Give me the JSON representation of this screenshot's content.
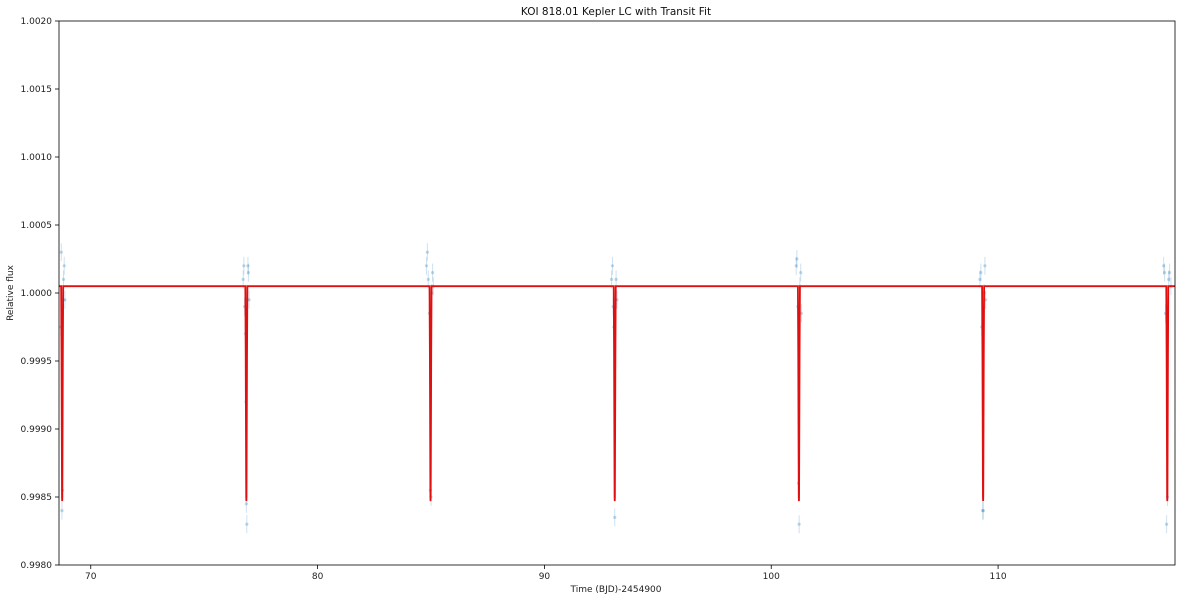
{
  "chart_data": {
    "type": "line",
    "title": "KOI 818.01 Kepler LC with Transit Fit",
    "xlabel": "Time (BJD)-2454900",
    "ylabel": "Relative flux",
    "xlim": [
      68.6,
      117.8
    ],
    "ylim": [
      0.998,
      1.002
    ],
    "xticks": [
      70,
      80,
      90,
      100,
      110
    ],
    "yticks": [
      0.998,
      0.9985,
      0.999,
      0.9995,
      1.0,
      1.0005,
      1.001,
      1.0015,
      1.002
    ],
    "ytick_labels": [
      "0.9980",
      "0.9985",
      "0.9990",
      "0.9995",
      "1.0000",
      "1.0005",
      "1.0010",
      "1.0015",
      "1.0020"
    ],
    "grid": false,
    "colors": {
      "model": "#e01010",
      "data": "#1f77b4",
      "axes": "#000000"
    },
    "series": [
      {
        "kind": "model",
        "baseline": 1.00005,
        "transit_depth_min": 0.99847,
        "transit_centers": [
          68.74,
          76.86,
          84.98,
          93.1,
          101.22,
          109.34,
          117.46
        ],
        "transit_half_width": 0.045
      },
      {
        "kind": "data",
        "points": [
          [
            68.68,
            0.99975
          ],
          [
            68.7,
            1.0003
          ],
          [
            68.73,
            0.9984
          ],
          [
            68.75,
            0.99855
          ],
          [
            68.78,
            0.99995
          ],
          [
            68.8,
            1.0001
          ],
          [
            68.83,
            1.0002
          ],
          [
            68.86,
            0.99995
          ],
          [
            76.72,
            1.0001
          ],
          [
            76.75,
            1.0002
          ],
          [
            76.78,
            0.9999
          ],
          [
            76.82,
            0.9997
          ],
          [
            76.84,
            0.9992
          ],
          [
            76.86,
            0.99845
          ],
          [
            76.88,
            0.9983
          ],
          [
            76.9,
            0.99995
          ],
          [
            76.93,
            1.0002
          ],
          [
            76.95,
            1.00015
          ],
          [
            76.98,
            0.99995
          ],
          [
            84.8,
            1.0002
          ],
          [
            84.84,
            1.0003
          ],
          [
            84.88,
            1.0001
          ],
          [
            84.93,
            0.99985
          ],
          [
            84.97,
            0.99855
          ],
          [
            85.0,
            0.9985
          ],
          [
            85.03,
            1.0
          ],
          [
            85.07,
            1.00015
          ],
          [
            85.1,
            1.00005
          ],
          [
            92.96,
            1.0001
          ],
          [
            93.0,
            1.0002
          ],
          [
            93.03,
            0.9999
          ],
          [
            93.06,
            0.99975
          ],
          [
            93.1,
            0.99835
          ],
          [
            93.13,
            0.99995
          ],
          [
            93.16,
            1.0001
          ],
          [
            93.2,
            0.99995
          ],
          [
            101.1,
            1.0002
          ],
          [
            101.13,
            1.00025
          ],
          [
            101.17,
            0.9999
          ],
          [
            101.2,
            0.9986
          ],
          [
            101.23,
            0.9983
          ],
          [
            101.26,
            1.00005
          ],
          [
            101.3,
            1.00015
          ],
          [
            101.33,
            0.99985
          ],
          [
            109.2,
            1.0001
          ],
          [
            109.24,
            1.00015
          ],
          [
            109.28,
            0.99975
          ],
          [
            109.32,
            0.9984
          ],
          [
            109.35,
            0.9984
          ],
          [
            109.38,
            1.0
          ],
          [
            109.42,
            1.0002
          ],
          [
            109.45,
            0.99995
          ],
          [
            117.3,
            1.0002
          ],
          [
            117.34,
            1.00015
          ],
          [
            117.38,
            0.99985
          ],
          [
            117.43,
            0.9983
          ],
          [
            117.47,
            0.9985
          ],
          [
            117.52,
            1.0001
          ],
          [
            117.56,
            1.00015
          ],
          [
            117.62,
            1.00005
          ]
        ]
      }
    ]
  }
}
